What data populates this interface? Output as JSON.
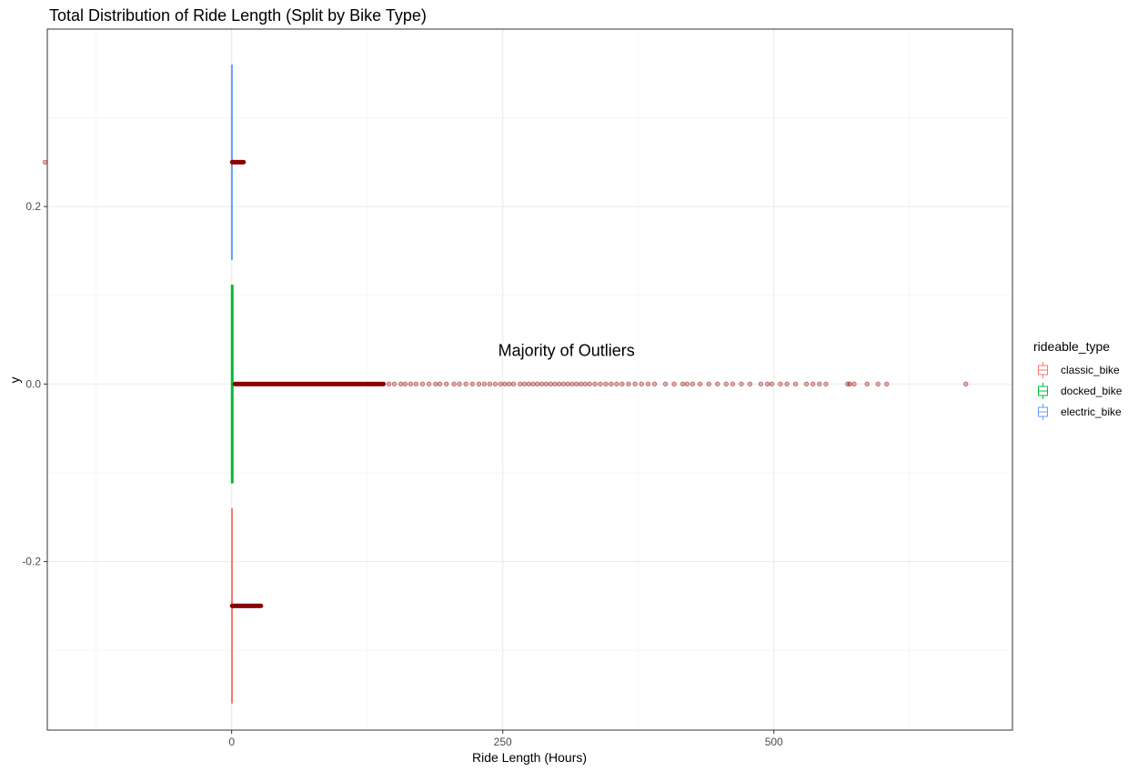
{
  "chart_data": {
    "type": "boxplot",
    "title": "Total Distribution of Ride Length (Split by Bike Type)",
    "xlabel": "Ride Length (Hours)",
    "ylabel": "y",
    "xlim": [
      -170,
      720
    ],
    "ylim": [
      -0.39,
      0.4
    ],
    "x_ticks": [
      0,
      250,
      500
    ],
    "y_ticks": [
      0.2,
      0.0,
      -0.2
    ],
    "x_tick_labels": [
      "0",
      "250",
      "500"
    ],
    "y_tick_labels": [
      "0.2",
      "0.0",
      "-0.2"
    ],
    "grid": true,
    "legend": {
      "title": "rideable_type",
      "position": "right",
      "entries": [
        {
          "name": "classic_bike",
          "color": "#F8766D"
        },
        {
          "name": "docked_bike",
          "color": "#00BA38"
        },
        {
          "name": "electric_bike",
          "color": "#619CFF"
        }
      ]
    },
    "series": [
      {
        "name": "classic_bike",
        "color": "#F8766D",
        "y_center": -0.25,
        "whisker_span": [
          -0.36,
          -0.14
        ],
        "median": 0.3,
        "outlier_band": [
          0.5,
          27
        ],
        "outliers": []
      },
      {
        "name": "docked_bike",
        "color": "#00BA38",
        "y_center": 0.0,
        "whisker_span": [
          -0.112,
          0.112
        ],
        "median": 0.5,
        "outlier_band": [
          3,
          140
        ],
        "outliers": [
          145,
          150,
          156,
          160,
          165,
          170,
          176,
          182,
          188,
          192,
          198,
          205,
          210,
          216,
          222,
          228,
          233,
          238,
          243,
          248,
          252,
          256,
          260,
          266,
          270,
          274,
          278,
          282,
          286,
          290,
          294,
          298,
          302,
          306,
          310,
          314,
          318,
          322,
          326,
          330,
          335,
          340,
          345,
          350,
          355,
          360,
          366,
          372,
          378,
          384,
          390,
          400,
          408,
          416,
          420,
          425,
          432,
          440,
          448,
          456,
          462,
          470,
          478,
          488,
          494,
          498,
          506,
          512,
          520,
          530,
          536,
          542,
          548,
          568,
          570,
          574,
          586,
          596,
          604,
          677
        ]
      },
      {
        "name": "electric_bike",
        "color": "#619CFF",
        "y_center": 0.25,
        "whisker_span": [
          0.14,
          0.36
        ],
        "median": 0.2,
        "outlier_band": [
          0.5,
          11
        ],
        "outliers": [
          -172
        ]
      }
    ],
    "annotations": [
      {
        "text": "Majority of Outliers",
        "x": 250,
        "y": 0.038
      }
    ],
    "outlier_color": "#8B0000"
  }
}
